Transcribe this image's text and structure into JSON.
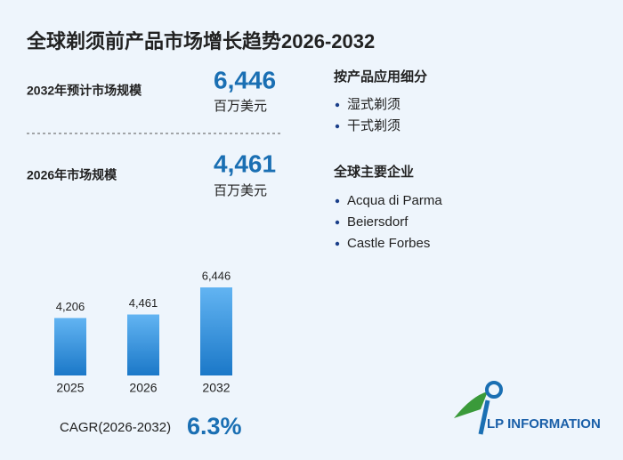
{
  "title": "全球剃须前产品市场增长趋势2026-2032",
  "stats": [
    {
      "label": "2032年预计市场规模",
      "value": "6,446",
      "unit": "百万美元"
    },
    {
      "label": "2026年市场规模",
      "value": "4,461",
      "unit": "百万美元"
    }
  ],
  "segments": {
    "title": "按产品应用细分",
    "items": [
      "湿式剃须",
      "干式剃须"
    ]
  },
  "companies": {
    "title": "全球主要企业",
    "items": [
      "Acqua di Parma",
      "Beiersdorf",
      "Castle Forbes"
    ]
  },
  "cagr": {
    "label": "CAGR(2026-2032)",
    "value": "6.3%"
  },
  "logo": "LP INFORMATION",
  "chart_data": {
    "type": "bar",
    "categories": [
      "2025",
      "2026",
      "2032"
    ],
    "values": [
      4206,
      4461,
      6446
    ],
    "value_labels": [
      "4,206",
      "4,461",
      "6,446"
    ]
  }
}
